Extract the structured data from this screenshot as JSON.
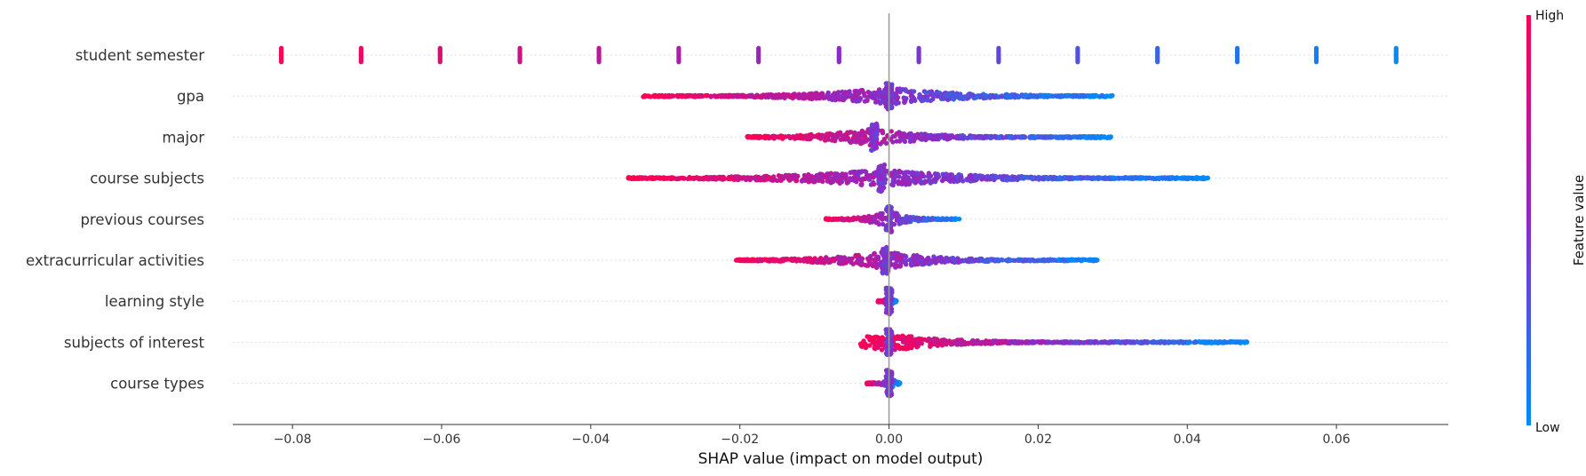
{
  "chart_data": {
    "type": "scatter",
    "subtype": "shap-beeswarm",
    "title": "",
    "xlabel": "SHAP value (impact on model output)",
    "xlim": [
      -0.088,
      0.075
    ],
    "x_ticks": [
      -0.08,
      -0.06,
      -0.04,
      -0.02,
      0.0,
      0.02,
      0.04,
      0.06
    ],
    "x_tick_labels": [
      "−0.08",
      "−0.06",
      "−0.04",
      "−0.02",
      "0.00",
      "0.02",
      "0.04",
      "0.06"
    ],
    "zero_line": 0.0,
    "colorbar": {
      "label": "Feature value",
      "high_label": "High",
      "low_label": "Low",
      "high_color": "#ff0052",
      "mid_color": "#8a2bc9",
      "low_color": "#008bfb"
    },
    "features": [
      {
        "name": "student semester",
        "points": [
          {
            "x": -0.0815,
            "v": 1.0
          },
          {
            "x": -0.0708,
            "v": 0.93
          },
          {
            "x": -0.0602,
            "v": 0.86
          },
          {
            "x": -0.0495,
            "v": 0.79
          },
          {
            "x": -0.0389,
            "v": 0.71
          },
          {
            "x": -0.0282,
            "v": 0.64
          },
          {
            "x": -0.0175,
            "v": 0.57
          },
          {
            "x": -0.0067,
            "v": 0.5
          },
          {
            "x": 0.004,
            "v": 0.43
          },
          {
            "x": 0.0147,
            "v": 0.36
          },
          {
            "x": 0.0253,
            "v": 0.29
          },
          {
            "x": 0.036,
            "v": 0.21
          },
          {
            "x": 0.0467,
            "v": 0.14
          },
          {
            "x": 0.0573,
            "v": 0.07
          },
          {
            "x": 0.068,
            "v": 0.0
          }
        ]
      },
      {
        "name": "gpa",
        "x_range": [
          -0.033,
          0.03
        ],
        "core": 0.0,
        "color_trend": "high-left"
      },
      {
        "name": "major",
        "x_range": [
          -0.019,
          0.03
        ],
        "core": -0.002,
        "color_trend": "high-left"
      },
      {
        "name": "course subjects",
        "x_range": [
          -0.035,
          0.043
        ],
        "core": -0.001,
        "color_trend": "high-left"
      },
      {
        "name": "previous courses",
        "x_range": [
          -0.0085,
          0.0095
        ],
        "core": 0.0,
        "color_trend": "high-left"
      },
      {
        "name": "extracurricular activities",
        "x_range": [
          -0.0205,
          0.028
        ],
        "core": -0.0005,
        "color_trend": "high-left"
      },
      {
        "name": "learning style",
        "points_summary": "high values cluster near -0.001, low values near +0.0005",
        "x_range": [
          -0.0015,
          0.001
        ]
      },
      {
        "name": "subjects of interest",
        "x_range": [
          -0.004,
          0.048
        ],
        "outlier": {
          "x": 0.048,
          "v": 0.0
        }
      },
      {
        "name": "course types",
        "x_range": [
          -0.003,
          0.0015
        ],
        "core": 0.0
      }
    ]
  }
}
